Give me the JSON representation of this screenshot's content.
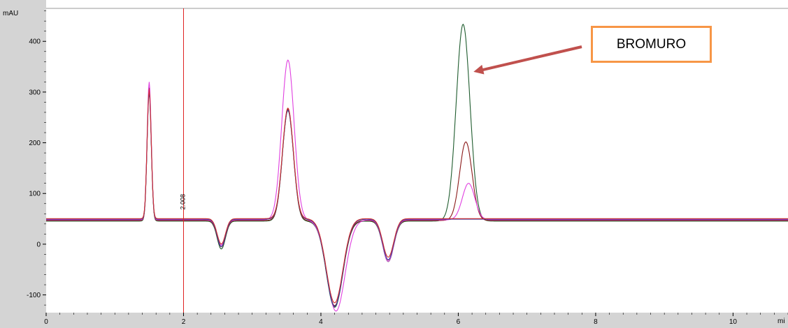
{
  "chart_data": {
    "type": "line",
    "y_unit": "mAU",
    "x_unit": "mi",
    "xlim": [
      0,
      10.8
    ],
    "ylim": [
      -135,
      465
    ],
    "x_ticks": [
      0,
      2,
      4,
      6,
      8,
      10
    ],
    "y_ticks": [
      -100,
      0,
      100,
      200,
      300,
      400
    ],
    "baseline": 48,
    "marker": {
      "x": 2.0,
      "label": "2.008"
    },
    "callout": {
      "label": "BROMURO",
      "target_x": 6.1,
      "target_y": 340
    },
    "series": [
      {
        "color": "#1f5c2e",
        "peaks": [
          [
            1.5,
            258,
            0.03
          ],
          [
            2.55,
            -55,
            0.06
          ],
          [
            3.52,
            218,
            0.08
          ],
          [
            4.2,
            -170,
            0.12
          ],
          [
            4.98,
            -80,
            0.08
          ],
          [
            6.07,
            388,
            0.1
          ]
        ]
      },
      {
        "color": "#8b1a1a",
        "peaks": [
          [
            1.5,
            262,
            0.03
          ],
          [
            2.55,
            -52,
            0.06
          ],
          [
            3.52,
            220,
            0.08
          ],
          [
            4.2,
            -168,
            0.12
          ],
          [
            4.98,
            -78,
            0.08
          ],
          [
            6.11,
            155,
            0.09
          ]
        ]
      },
      {
        "color": "#e040e0",
        "peaks": [
          [
            1.5,
            272,
            0.03
          ],
          [
            2.55,
            -50,
            0.06
          ],
          [
            3.52,
            315,
            0.09
          ],
          [
            4.22,
            -180,
            0.13
          ],
          [
            4.98,
            -82,
            0.08
          ],
          [
            6.15,
            72,
            0.09
          ]
        ]
      },
      {
        "color": "#3a3aa0",
        "peaks": [
          [
            1.5,
            250,
            0.03
          ],
          [
            2.55,
            -54,
            0.06
          ],
          [
            3.52,
            215,
            0.08
          ],
          [
            4.2,
            -172,
            0.12
          ],
          [
            4.98,
            -80,
            0.08
          ]
        ]
      },
      {
        "color": "#d03030",
        "peaks": [
          [
            1.5,
            255,
            0.03
          ],
          [
            2.55,
            -50,
            0.06
          ],
          [
            3.52,
            218,
            0.08
          ],
          [
            4.2,
            -166,
            0.12
          ],
          [
            4.98,
            -76,
            0.08
          ]
        ]
      }
    ]
  }
}
